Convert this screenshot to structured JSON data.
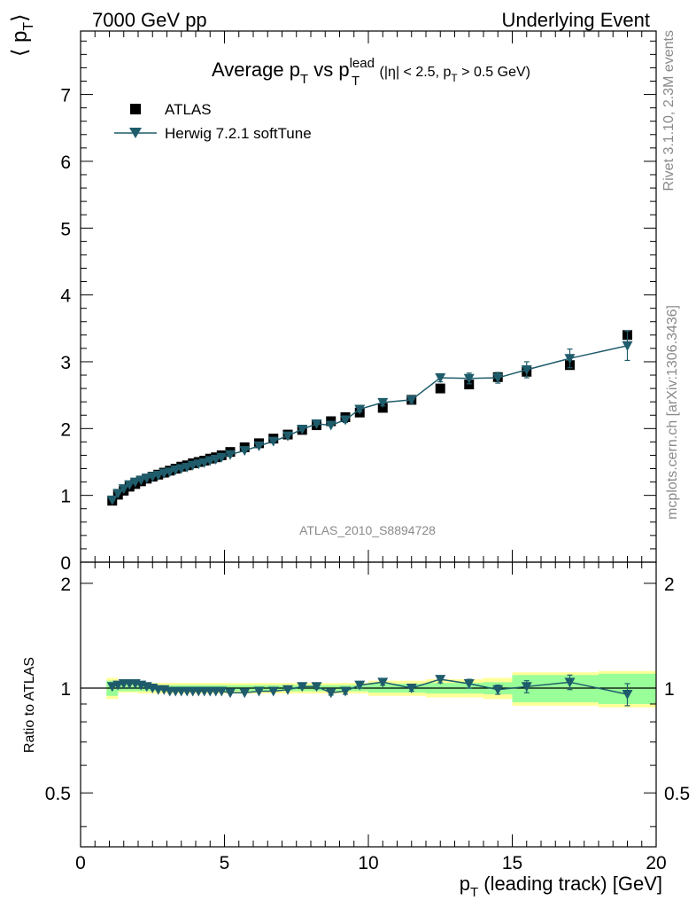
{
  "header": {
    "left": "7000 GeV pp",
    "right": "Underlying Event"
  },
  "side_text": {
    "rivet": "Rivet 3.1.10,  2.3M events",
    "mcplots": "mcplots.cern.ch [arXiv:1306.3436]"
  },
  "watermark": "ATLAS_2010_S8894728",
  "colors": {
    "mc": "#1f5c6b",
    "data": "#000000",
    "band_inner": "#99ff99",
    "band_outer": "#ffff99"
  },
  "chart_data": [
    {
      "type": "scatter",
      "title": {
        "main": "Average p",
        "sub1": "T",
        "mid": " vs p",
        "sup": "lead",
        "sub2": "T",
        "cond_a": " (|η| < 2.5, p",
        "cond_sub": "T",
        "cond_b": " > 0.5 GeV)"
      },
      "ylabel": {
        "open": "⟨ p",
        "sub": "T",
        "close": "⟩"
      },
      "xlim": [
        0,
        20
      ],
      "ylim": [
        0,
        7.95
      ],
      "yticks": [
        "1",
        "2",
        "3",
        "4",
        "5",
        "6",
        "7"
      ],
      "ytick_zero": "0",
      "legend_position": "top-left",
      "series": [
        {
          "name": "ATLAS",
          "marker": "square",
          "x": [
            1.1,
            1.3,
            1.5,
            1.7,
            1.9,
            2.1,
            2.3,
            2.5,
            2.7,
            2.9,
            3.1,
            3.3,
            3.5,
            3.7,
            3.9,
            4.1,
            4.3,
            4.5,
            4.7,
            4.9,
            5.2,
            5.7,
            6.2,
            6.7,
            7.2,
            7.7,
            8.2,
            8.7,
            9.2,
            9.7,
            10.5,
            11.5,
            12.5,
            13.5,
            14.5,
            15.5,
            17.0,
            19.0
          ],
          "y": [
            0.92,
            1.01,
            1.07,
            1.13,
            1.17,
            1.21,
            1.25,
            1.28,
            1.31,
            1.34,
            1.37,
            1.4,
            1.43,
            1.45,
            1.48,
            1.5,
            1.52,
            1.55,
            1.57,
            1.6,
            1.65,
            1.72,
            1.78,
            1.85,
            1.91,
            1.98,
            2.05,
            2.11,
            2.17,
            2.24,
            2.31,
            2.43,
            2.6,
            2.66,
            2.77,
            2.85,
            2.95,
            3.4
          ]
        },
        {
          "name": "Herwig 7.2.1 softTune",
          "marker": "triangle-down",
          "x": [
            1.1,
            1.3,
            1.5,
            1.7,
            1.9,
            2.1,
            2.3,
            2.5,
            2.7,
            2.9,
            3.1,
            3.3,
            3.5,
            3.7,
            3.9,
            4.1,
            4.3,
            4.5,
            4.7,
            4.9,
            5.2,
            5.7,
            6.2,
            6.7,
            7.2,
            7.7,
            8.2,
            8.7,
            9.2,
            9.7,
            10.5,
            11.5,
            12.5,
            13.5,
            14.5,
            15.5,
            17.0,
            19.0
          ],
          "y": [
            0.93,
            1.03,
            1.1,
            1.16,
            1.2,
            1.23,
            1.26,
            1.28,
            1.3,
            1.33,
            1.35,
            1.38,
            1.4,
            1.42,
            1.45,
            1.47,
            1.49,
            1.52,
            1.54,
            1.57,
            1.61,
            1.67,
            1.74,
            1.81,
            1.89,
            1.99,
            2.07,
            2.05,
            2.13,
            2.29,
            2.39,
            2.43,
            2.76,
            2.75,
            2.76,
            2.88,
            3.05,
            3.24
          ],
          "yerr": [
            0.01,
            0.01,
            0.01,
            0.01,
            0.01,
            0.01,
            0.01,
            0.01,
            0.01,
            0.01,
            0.01,
            0.01,
            0.01,
            0.01,
            0.01,
            0.01,
            0.01,
            0.01,
            0.01,
            0.01,
            0.01,
            0.01,
            0.02,
            0.02,
            0.02,
            0.02,
            0.03,
            0.03,
            0.04,
            0.04,
            0.05,
            0.05,
            0.06,
            0.08,
            0.08,
            0.12,
            0.14,
            0.22
          ]
        }
      ]
    },
    {
      "type": "scatter",
      "ylabel": "Ratio to ATLAS",
      "xlabel": {
        "pre": "p",
        "sub": "T",
        "post": " (leading track) [GeV]"
      },
      "xlim": [
        0,
        20
      ],
      "xticks": [
        "0",
        "5",
        "10",
        "15",
        "20"
      ],
      "ylim": [
        0.35,
        2.3
      ],
      "yticks": [
        "0.5",
        "1",
        "2"
      ],
      "bands": {
        "edges": [
          0.9,
          1.3,
          2.0,
          3.0,
          4.0,
          6.0,
          8.0,
          10.0,
          12.0,
          14.0,
          15.0,
          18.0,
          20.0
        ],
        "inner": [
          0.05,
          0.02,
          0.02,
          0.02,
          0.02,
          0.02,
          0.02,
          0.03,
          0.035,
          0.04,
          0.09,
          0.1
        ],
        "outer": [
          0.07,
          0.03,
          0.035,
          0.035,
          0.035,
          0.035,
          0.035,
          0.05,
          0.06,
          0.07,
          0.11,
          0.12
        ]
      },
      "series": [
        {
          "name": "Herwig 7.2.1 softTune",
          "x": [
            1.1,
            1.3,
            1.5,
            1.7,
            1.9,
            2.1,
            2.3,
            2.5,
            2.7,
            2.9,
            3.1,
            3.3,
            3.5,
            3.7,
            3.9,
            4.1,
            4.3,
            4.5,
            4.7,
            4.9,
            5.2,
            5.7,
            6.2,
            6.7,
            7.2,
            7.7,
            8.2,
            8.7,
            9.2,
            9.7,
            10.5,
            11.5,
            12.5,
            13.5,
            14.5,
            15.5,
            17.0,
            19.0
          ],
          "y": [
            1.01,
            1.02,
            1.03,
            1.03,
            1.03,
            1.02,
            1.01,
            1.0,
            0.99,
            0.99,
            0.98,
            0.98,
            0.98,
            0.98,
            0.98,
            0.98,
            0.98,
            0.98,
            0.98,
            0.98,
            0.97,
            0.97,
            0.98,
            0.98,
            0.99,
            1.01,
            1.01,
            0.97,
            0.98,
            1.02,
            1.04,
            1.0,
            1.06,
            1.03,
            0.99,
            1.01,
            1.04,
            0.96
          ],
          "yerr": [
            0.01,
            0.01,
            0.01,
            0.01,
            0.01,
            0.01,
            0.01,
            0.01,
            0.01,
            0.01,
            0.01,
            0.01,
            0.01,
            0.01,
            0.01,
            0.01,
            0.01,
            0.01,
            0.01,
            0.01,
            0.01,
            0.01,
            0.01,
            0.01,
            0.01,
            0.01,
            0.015,
            0.015,
            0.02,
            0.02,
            0.02,
            0.02,
            0.025,
            0.03,
            0.03,
            0.04,
            0.05,
            0.07
          ]
        }
      ]
    }
  ]
}
